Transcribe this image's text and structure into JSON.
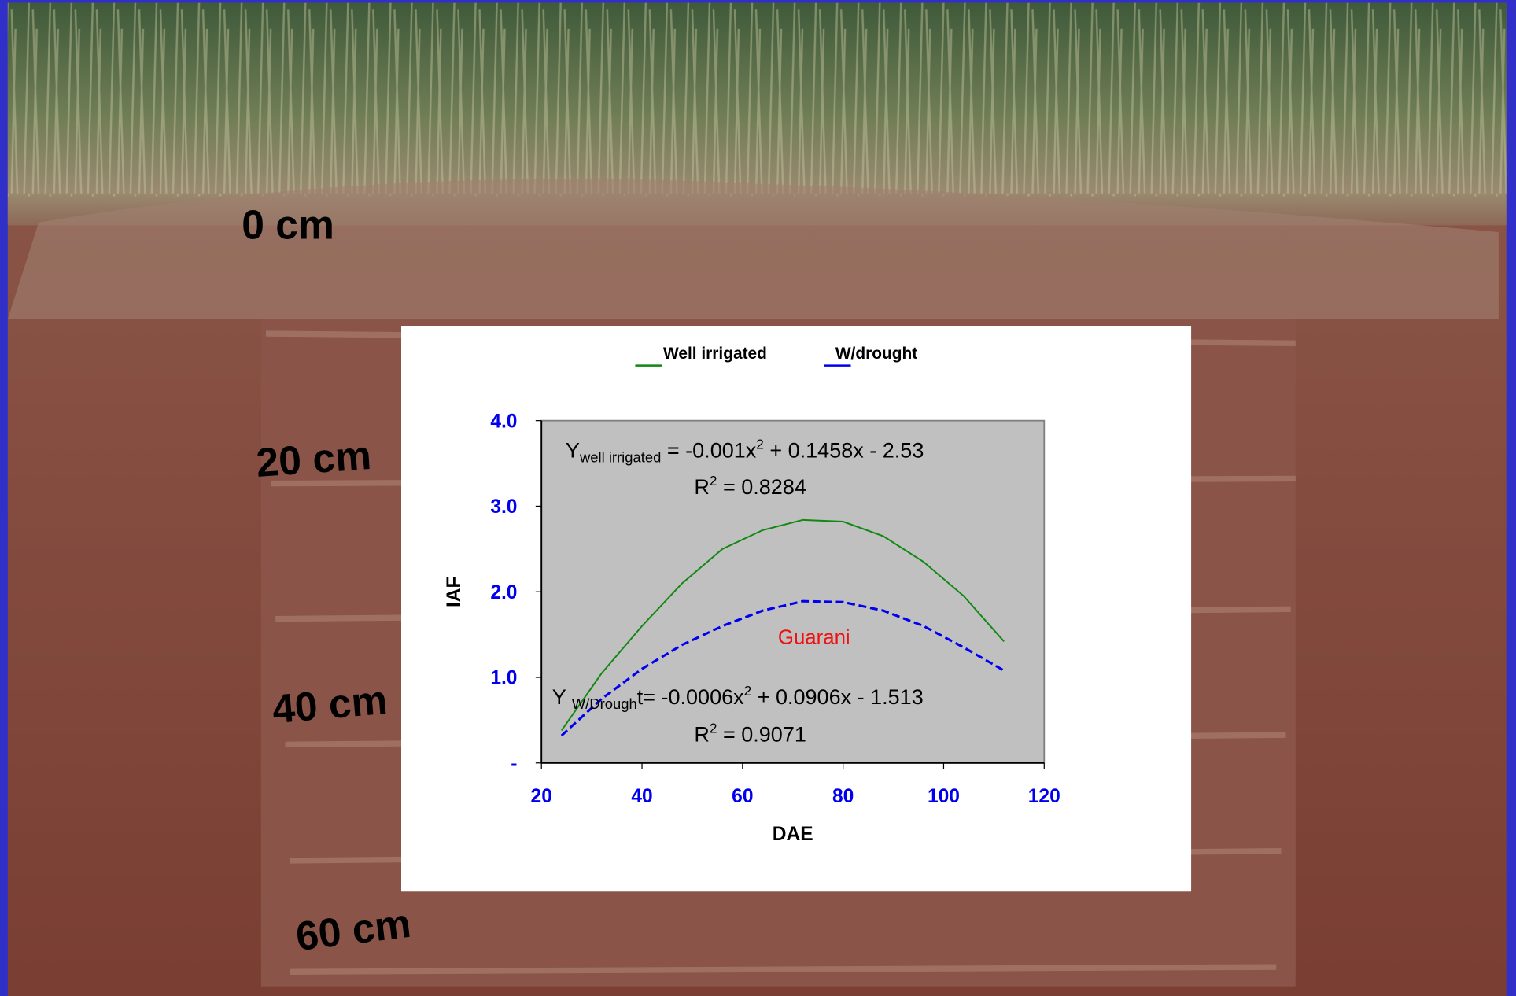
{
  "depth_labels": [
    "0 cm",
    "20 cm",
    "40 cm",
    "60 cm"
  ],
  "chart_data": {
    "type": "line",
    "x": [
      24,
      32,
      40,
      48,
      56,
      64,
      72,
      80,
      88,
      96,
      104,
      112
    ],
    "series": [
      {
        "name": "Well irrigated",
        "color": "#118811",
        "dash": false,
        "values": [
          0.38,
          1.05,
          1.6,
          2.1,
          2.5,
          2.72,
          2.84,
          2.82,
          2.65,
          2.35,
          1.95,
          1.42
        ]
      },
      {
        "name": "W/drought",
        "color": "#0000ee",
        "dash": true,
        "values": [
          0.32,
          0.75,
          1.1,
          1.38,
          1.6,
          1.78,
          1.89,
          1.88,
          1.78,
          1.6,
          1.35,
          1.08
        ]
      }
    ],
    "x_label": "DAE",
    "y_label": "IAF",
    "xlim": [
      20,
      120
    ],
    "xticks": [
      20,
      40,
      60,
      80,
      100,
      120
    ],
    "ylim": [
      0,
      4
    ],
    "yticks": [
      {
        "value": 0,
        "label": "-"
      },
      {
        "value": 1,
        "label": "1.0"
      },
      {
        "value": 2,
        "label": "2.0"
      },
      {
        "value": 3,
        "label": "3.0"
      },
      {
        "value": 4,
        "label": "4.0"
      }
    ],
    "equations": [
      [
        "Y",
        "well irrigated",
        " = -0.001x",
        "2",
        " + 0.1458x - 2.53"
      ],
      [
        "R",
        "2",
        " = 0.8284"
      ],
      [
        "Y ",
        "W/Drough",
        "t= -0.0006x",
        "2",
        " + 0.0906x - 1.513"
      ],
      [
        "R",
        "2",
        " = 0.9071"
      ]
    ],
    "annotation": "Guarani",
    "annotation_color": "#ee1111",
    "plot_background": "#c0c0c0"
  }
}
